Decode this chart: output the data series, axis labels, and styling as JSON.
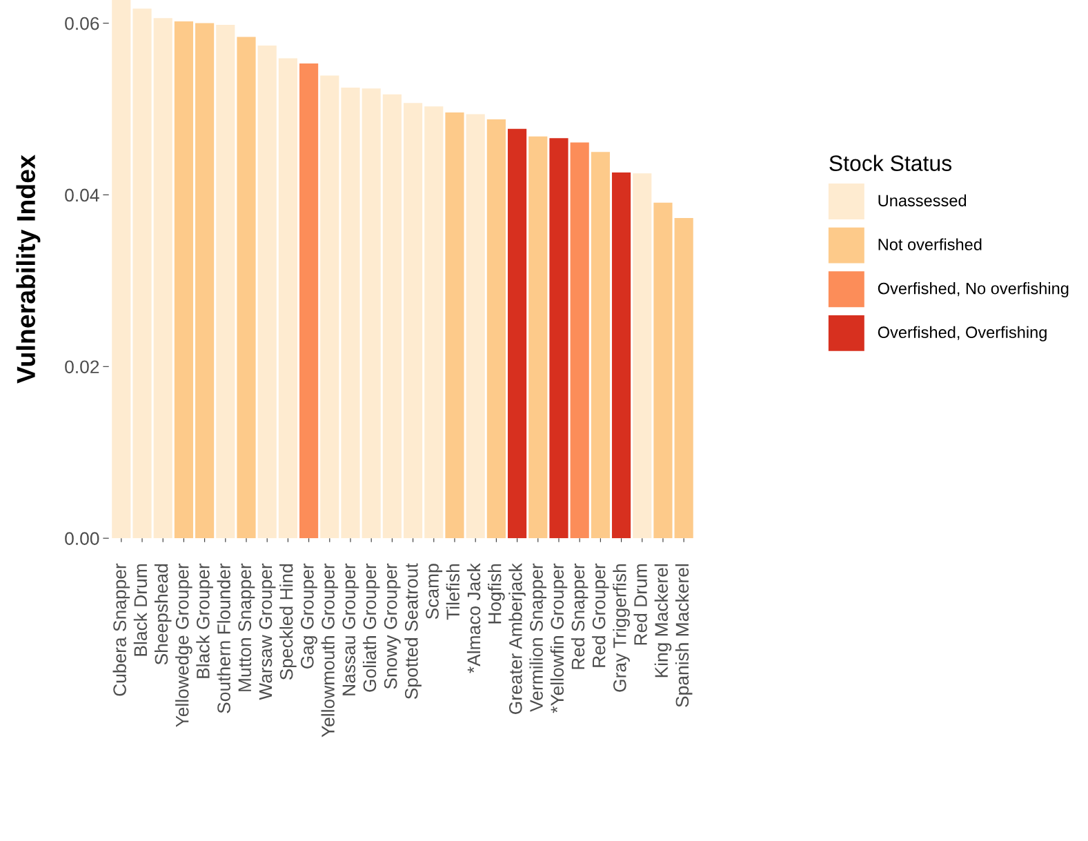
{
  "chart_data": {
    "type": "bar",
    "ylabel": "Vulnerability Index",
    "legend_title": "Stock Status",
    "legend": "right",
    "grid": false,
    "categories": [
      "Cubera Snapper",
      "Black Drum",
      "Sheepshead",
      "Yellowedge Grouper",
      "Black Grouper",
      "Southern Flounder",
      "Mutton Snapper",
      "Warsaw Grouper",
      "Speckled Hind",
      "Gag Grouper",
      "Yellowmouth Grouper",
      "Nassau Grouper",
      "Goliath Grouper",
      "Snowy Grouper",
      "Spotted Seatrout",
      "Scamp",
      "Tilefish",
      "*Almaco Jack",
      "Hogfish",
      "Greater Amberjack",
      "Vermilion Snapper",
      "*Yellowfin Grouper",
      "Red Snapper",
      "Red Grouper",
      "Gray Triggerfish",
      "Red Drum",
      "King Mackerel",
      "Spanish Mackerel"
    ],
    "series": [
      {
        "name": "Unassessed",
        "color": "#feebd0",
        "values": [
          0.0627,
          0.0617,
          0.0606,
          null,
          null,
          0.0598,
          null,
          0.0574,
          0.0559,
          null,
          0.0539,
          0.0525,
          0.0524,
          0.0517,
          0.0507,
          0.0503,
          null,
          0.0494,
          null,
          null,
          null,
          null,
          null,
          null,
          null,
          0.0425,
          null,
          null
        ]
      },
      {
        "name": "Not overfished",
        "color": "#fdca8a",
        "values": [
          null,
          null,
          null,
          0.0602,
          0.06,
          null,
          0.0584,
          null,
          null,
          null,
          null,
          null,
          null,
          null,
          null,
          null,
          0.0496,
          null,
          0.0488,
          null,
          0.0468,
          null,
          null,
          0.045,
          null,
          null,
          0.0391,
          0.0373
        ]
      },
      {
        "name": "Overfished, No overfishing",
        "color": "#fc8d59",
        "values": [
          null,
          null,
          null,
          null,
          null,
          null,
          null,
          null,
          null,
          0.0553,
          null,
          null,
          null,
          null,
          null,
          null,
          null,
          null,
          null,
          null,
          null,
          null,
          0.0461,
          null,
          null,
          null,
          null,
          null
        ]
      },
      {
        "name": "Overfished, Overfishing",
        "color": "#d7301f",
        "values": [
          null,
          null,
          null,
          null,
          null,
          null,
          null,
          null,
          null,
          null,
          null,
          null,
          null,
          null,
          null,
          null,
          null,
          null,
          null,
          0.0477,
          null,
          0.0466,
          null,
          null,
          0.0426,
          null,
          null,
          null
        ]
      }
    ],
    "ylim": [
      0,
      0.0627
    ],
    "yticks": [
      {
        "value": 0,
        "label": "0.00"
      },
      {
        "value": 0.02,
        "label": "0.02"
      },
      {
        "value": 0.04,
        "label": "0.04"
      },
      {
        "value": 0.06,
        "label": "0.06"
      }
    ]
  }
}
